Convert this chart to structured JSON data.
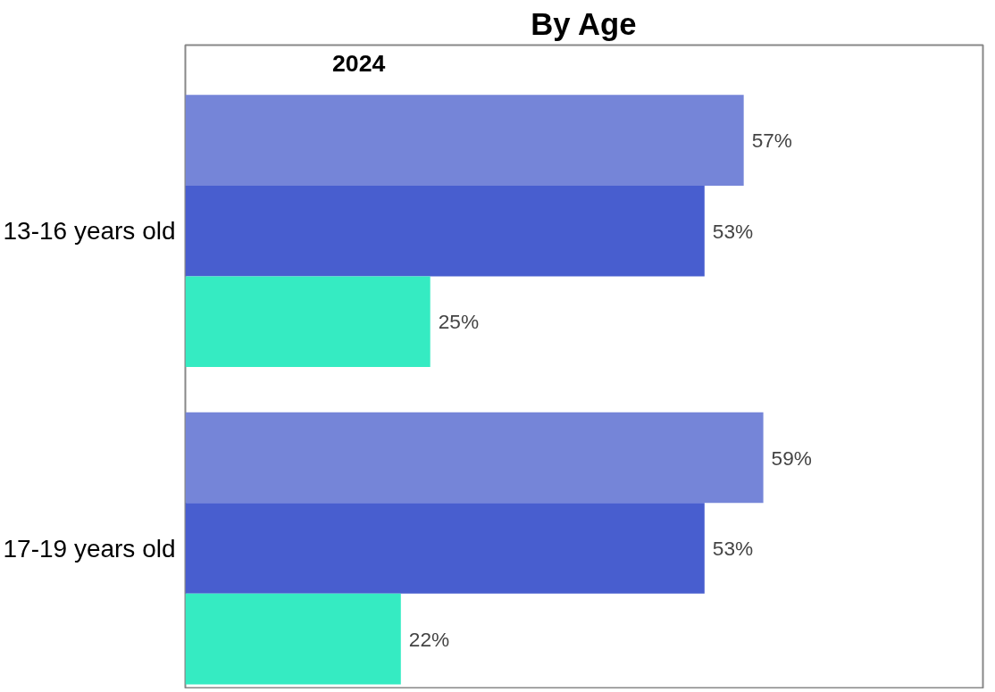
{
  "chart_data": {
    "type": "bar",
    "orientation": "horizontal",
    "title": "By Age",
    "subtitle": "2024",
    "categories": [
      "13-16 years old",
      "17-19 years old"
    ],
    "series": [
      {
        "color": "#7585d8",
        "values": [
          57,
          59
        ],
        "value_labels": [
          "57%",
          "59%"
        ]
      },
      {
        "color": "#485ecf",
        "values": [
          53,
          53
        ],
        "value_labels": [
          "53%",
          "53%"
        ]
      },
      {
        "color": "#35ebc2",
        "values": [
          25,
          22
        ],
        "value_labels": [
          "25%",
          "22%"
        ]
      }
    ]
  }
}
